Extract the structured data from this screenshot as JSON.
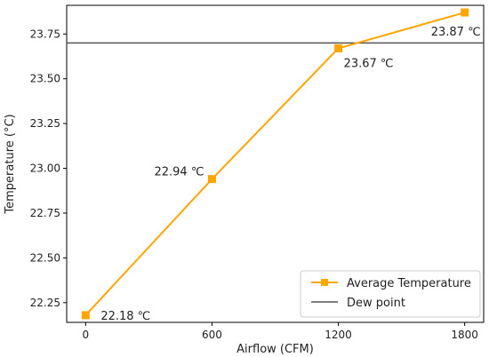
{
  "chart_data": {
    "type": "line",
    "title": "",
    "xlabel": "Airflow (CFM)",
    "ylabel": "Temperature (°C)",
    "xlim": [
      -90,
      1890
    ],
    "ylim": [
      22.14,
      23.91
    ],
    "x_ticks": [
      {
        "value": 0,
        "label": "0"
      },
      {
        "value": 600,
        "label": "600"
      },
      {
        "value": 1200,
        "label": "1200"
      },
      {
        "value": 1800,
        "label": "1800"
      }
    ],
    "y_ticks": [
      {
        "value": 22.25,
        "label": "22.25"
      },
      {
        "value": 22.5,
        "label": "22.50"
      },
      {
        "value": 22.75,
        "label": "22.75"
      },
      {
        "value": 23.0,
        "label": "23.00"
      },
      {
        "value": 23.25,
        "label": "23.25"
      },
      {
        "value": 23.5,
        "label": "23.50"
      },
      {
        "value": 23.75,
        "label": "23.75"
      }
    ],
    "grid": false,
    "series": [
      {
        "name": "Average Temperature",
        "color": "#FFA500",
        "marker": "square",
        "points": [
          {
            "x": 0,
            "y": 22.18,
            "label": "22.18 ℃"
          },
          {
            "x": 600,
            "y": 22.94,
            "label": "22.94 ℃"
          },
          {
            "x": 1200,
            "y": 23.67,
            "label": "23.67 ℃"
          },
          {
            "x": 1800,
            "y": 23.87,
            "label": "23.87 ℃"
          }
        ]
      }
    ],
    "reference_lines": [
      {
        "name": "Dew point",
        "y": 23.7,
        "color": "#555555"
      }
    ],
    "legend": {
      "position": "lower-right",
      "entries": [
        "Average Temperature",
        "Dew point"
      ]
    }
  }
}
